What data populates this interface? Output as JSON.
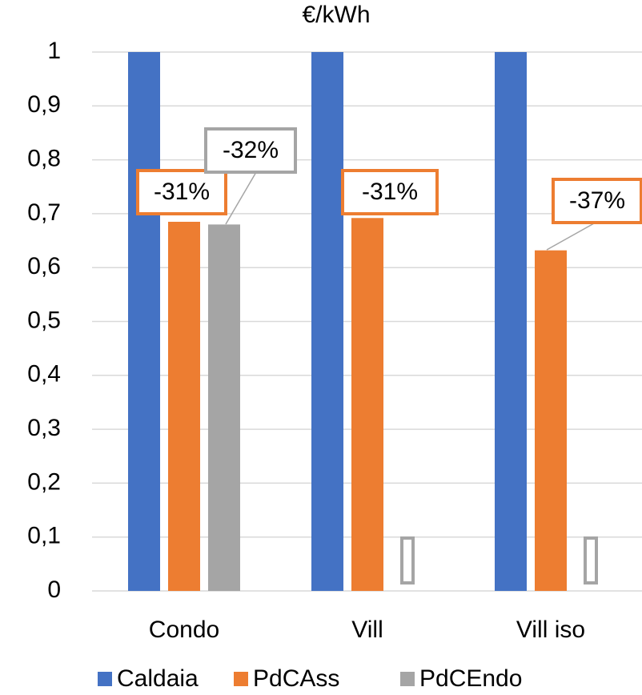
{
  "chart_data": {
    "type": "bar",
    "title": "€/kWh",
    "categories": [
      "Condo",
      "Vill",
      "Vill iso"
    ],
    "series": [
      {
        "name": "Caldaia",
        "color": "#4472c4",
        "values": [
          1,
          1,
          1
        ]
      },
      {
        "name": "PdCAss",
        "color": "#ed7d31",
        "values": [
          0.685,
          0.692,
          0.632
        ],
        "labels": [
          "-31%",
          "-31%",
          "-37%"
        ]
      },
      {
        "name": "PdCEndo",
        "color": "#a5a5a5",
        "values": [
          0.68,
          null,
          null
        ],
        "labels": [
          "-32%",
          null,
          null
        ]
      }
    ],
    "ylim": [
      0,
      1
    ],
    "yticks": [
      0,
      {
        "value": 0.1,
        "label": "0,1"
      },
      {
        "value": 0.2,
        "label": "0,2"
      },
      {
        "value": 0.3,
        "label": "0,3"
      },
      {
        "value": 0.4,
        "label": "0,4"
      },
      {
        "value": 0.5,
        "label": "0,5"
      },
      {
        "value": 0.6,
        "label": "0,6"
      },
      {
        "value": 0.7,
        "label": "0,7"
      },
      {
        "value": 0.8,
        "label": "0,8"
      },
      {
        "value": 0.9,
        "label": "0,9"
      },
      1
    ],
    "grid": true,
    "legend": "bottom"
  }
}
